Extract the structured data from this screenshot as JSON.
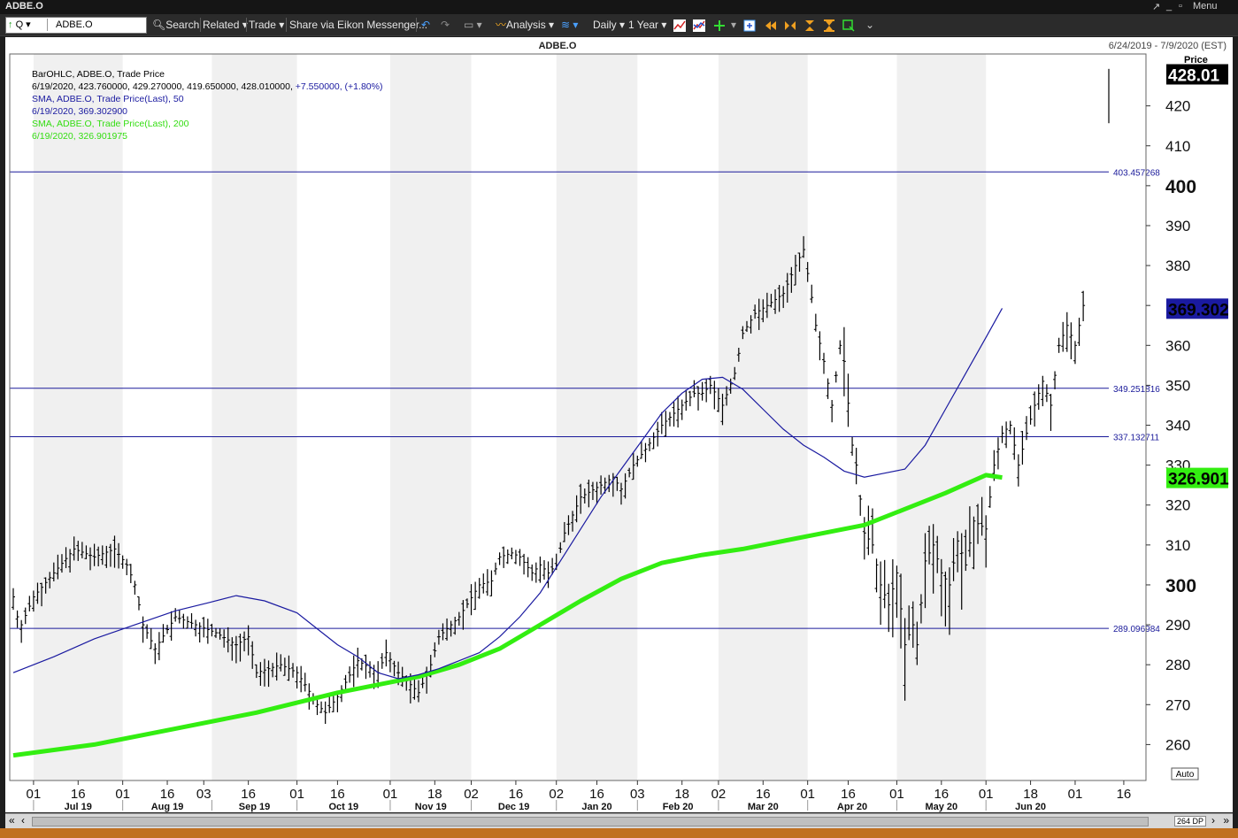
{
  "window": {
    "title": "ADBE.O",
    "menu_label": "Menu"
  },
  "toolbar": {
    "quote_label": "Q",
    "ticker_value": "ADBE.O",
    "search_label": "Search",
    "related_label": "Related",
    "trade_label": "Trade",
    "share_label": "Share via Eikon Messenger...",
    "analysis_label": "Analysis",
    "interval_label": "Daily",
    "range_label": "1 Year"
  },
  "chart": {
    "instrument": "ADBE.O",
    "date_range": "6/24/2019 - 7/9/2020 (EST)",
    "price_axis_label": "Price",
    "auto_label": "Auto",
    "dp_label": "264 DP",
    "legend": {
      "line1": "BarOHLC, ADBE.O, Trade Price",
      "line2": "6/19/2020, 423.760000, 429.270000, 419.650000, 428.010000,",
      "line2_change": "+7.550000, (+1.80%)",
      "line3": "SMA, ADBE.O, Trade Price(Last),  50",
      "line4": "6/19/2020, 369.302900",
      "line5": "SMA, ADBE.O, Trade Price(Last),  200",
      "line6": "6/19/2020, 326.901975"
    },
    "colors": {
      "bars": "#000000",
      "sma50": "#1a1aa0",
      "sma200": "#33ee11",
      "hlines": "#1a1a9a",
      "band": "#f0f0f0"
    },
    "badges": [
      {
        "label": "428.01",
        "value": 428.01,
        "bg": "#000000",
        "fg": "#ffffff"
      },
      {
        "label": "369.302",
        "value": 369.3029,
        "bg": "#1a1aa0",
        "fg": "#000000"
      },
      {
        "label": "326.901",
        "value": 326.901975,
        "bg": "#33ee11",
        "fg": "#000000"
      }
    ]
  },
  "chart_data": {
    "type": "ohlc",
    "title": "ADBE.O",
    "ylabel": "Price",
    "ylim": [
      251,
      433
    ],
    "y_ticks": [
      260,
      270,
      280,
      290,
      300,
      310,
      320,
      330,
      340,
      350,
      360,
      370,
      380,
      390,
      400,
      410,
      420
    ],
    "y_tick_labels": [
      "260",
      "270",
      "280",
      "290",
      "300",
      "310",
      "320",
      "330",
      "340",
      "350",
      "360",
      "",
      "380",
      "390",
      "400",
      "410",
      "420"
    ],
    "x_day_ticks": [
      "01",
      "16",
      "01",
      "16",
      "03",
      "16",
      "01",
      "16",
      "01",
      "18",
      "02",
      "16",
      "02",
      "16",
      "03",
      "18",
      "02",
      "16",
      "01",
      "16",
      "01",
      "16",
      "01",
      "18",
      "01",
      "16",
      "01"
    ],
    "x_month_labels": [
      "Jul 19",
      "Aug 19",
      "Sep 19",
      "Oct 19",
      "Nov 19",
      "Dec 19",
      "Jan 20",
      "Feb 20",
      "Mar 20",
      "Apr 20",
      "May 20",
      "Jun 20"
    ],
    "horizontal_lines": [
      {
        "label": "403.457268",
        "value": 403.457268
      },
      {
        "label": "349.251816",
        "value": 349.251816
      },
      {
        "label": "337.132711",
        "value": 337.132711
      },
      {
        "label": "289.096984",
        "value": 289.096984
      }
    ],
    "last_bar": {
      "date": "6/19/2020",
      "open": 423.76,
      "high": 429.27,
      "low": 419.65,
      "close": 428.01
    },
    "series": [
      {
        "name": "SMA, ADBE.O, Trade Price(Last),  50",
        "last": 369.3029,
        "points": [
          [
            0,
            278
          ],
          [
            10,
            282
          ],
          [
            20,
            286.5
          ],
          [
            30,
            290
          ],
          [
            40,
            293.5
          ],
          [
            48,
            295.5
          ],
          [
            55,
            297.3
          ],
          [
            62,
            296
          ],
          [
            70,
            293
          ],
          [
            75,
            289
          ],
          [
            80,
            285
          ],
          [
            85,
            282
          ],
          [
            90,
            278
          ],
          [
            95,
            276.5
          ],
          [
            100,
            277.5
          ],
          [
            105,
            279
          ],
          [
            110,
            281
          ],
          [
            115,
            283
          ],
          [
            120,
            287
          ],
          [
            125,
            292
          ],
          [
            130,
            298
          ],
          [
            135,
            306
          ],
          [
            140,
            314
          ],
          [
            145,
            322
          ],
          [
            150,
            329
          ],
          [
            155,
            336
          ],
          [
            160,
            343
          ],
          [
            165,
            348
          ],
          [
            170,
            351.5
          ],
          [
            175,
            352
          ],
          [
            180,
            349
          ],
          [
            185,
            344
          ],
          [
            190,
            339
          ],
          [
            195,
            335
          ],
          [
            200,
            332
          ],
          [
            205,
            328.5
          ],
          [
            210,
            327
          ],
          [
            215,
            328
          ],
          [
            220,
            329
          ],
          [
            225,
            335
          ],
          [
            230,
            344
          ],
          [
            235,
            353
          ],
          [
            240,
            362
          ],
          [
            244,
            369.3
          ]
        ]
      },
      {
        "name": "SMA, ADBE.O, Trade Price(Last),  200",
        "last": 326.901975,
        "points": [
          [
            0,
            257.3
          ],
          [
            20,
            260
          ],
          [
            40,
            264
          ],
          [
            60,
            268
          ],
          [
            80,
            273
          ],
          [
            100,
            277
          ],
          [
            110,
            280
          ],
          [
            120,
            284
          ],
          [
            130,
            290
          ],
          [
            140,
            296
          ],
          [
            150,
            301.5
          ],
          [
            160,
            305.5
          ],
          [
            170,
            307.5
          ],
          [
            180,
            309
          ],
          [
            190,
            311
          ],
          [
            200,
            313
          ],
          [
            210,
            315
          ],
          [
            220,
            319
          ],
          [
            230,
            323
          ],
          [
            240,
            327.5
          ],
          [
            244,
            326.9
          ]
        ]
      }
    ]
  }
}
